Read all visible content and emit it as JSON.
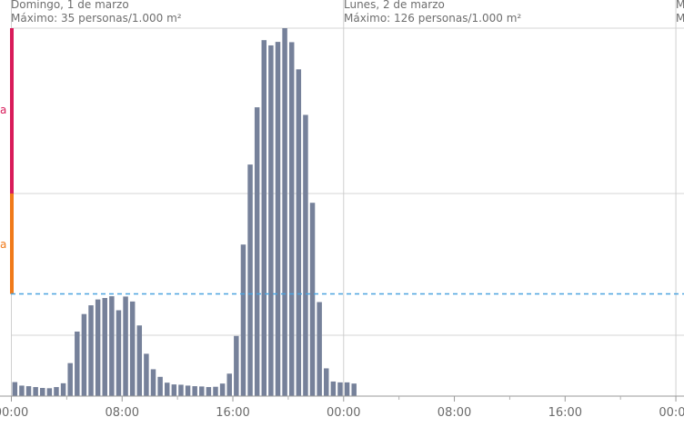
{
  "chart_data": {
    "type": "bar",
    "days": [
      {
        "date_label": "Domingo, 1 de marzo",
        "max_label": "Máximo: 35 personas/1.000 m²"
      },
      {
        "date_label": "Lunes, 2 de marzo",
        "max_label": "Máximo: 126 personas/1.000 m²"
      },
      {
        "date_label": "M",
        "max_label": "M"
      }
    ],
    "x_ticks": [
      "00:00",
      "08:00",
      "16:00",
      "00:00",
      "08:00",
      "16:00",
      "00:00"
    ],
    "bar_interval_minutes": 30,
    "x_range_hours": [
      0,
      48
    ],
    "y_range": [
      0,
      126
    ],
    "values": [
      4.8,
      3.6,
      3.4,
      3.1,
      2.8,
      2.7,
      3.1,
      4.4,
      11.3,
      22.1,
      28.1,
      31.1,
      33.1,
      33.6,
      34.2,
      29.4,
      34.1,
      32.4,
      24.2,
      14.5,
      9.2,
      6.6,
      4.6,
      4.0,
      3.9,
      3.6,
      3.4,
      3.3,
      3.1,
      3.2,
      4.3,
      7.7,
      20.6,
      51.9,
      79.3,
      98.9,
      121.9,
      120.1,
      121.3,
      126.0,
      121.2,
      111.9,
      96.3,
      66.2,
      32.2,
      9.5,
      5.0,
      4.7,
      4.7,
      4.3
    ],
    "threshold": 35,
    "level_colors": {
      "low": "#f07a1a",
      "high": "#d81b5a"
    },
    "bar_color": "#76819a",
    "threshold_color": "#4aa3df",
    "grid": true,
    "edge_labels": [
      {
        "text": "a",
        "color": "#d81b5a"
      },
      {
        "text": "a",
        "color": "#f07a1a"
      }
    ]
  }
}
